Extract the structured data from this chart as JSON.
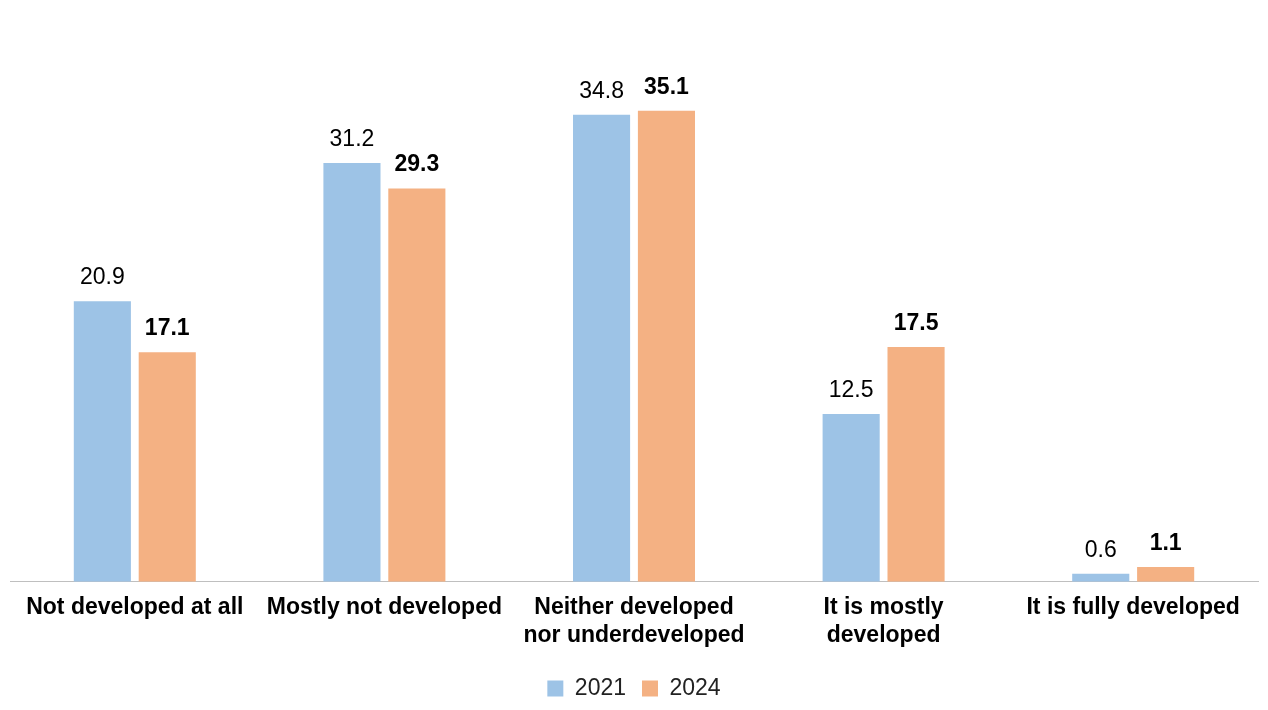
{
  "chart_data": {
    "type": "bar",
    "categories": [
      "Not developed at all",
      "Mostly not developed",
      "Neither developed nor underdeveloped",
      "It is mostly developed",
      "It is fully developed"
    ],
    "series": [
      {
        "name": "2021",
        "color": "#9dc3e6",
        "values": [
          20.9,
          31.2,
          34.8,
          12.5,
          0.6
        ]
      },
      {
        "name": "2024",
        "color": "#f4b183",
        "values": [
          17.1,
          29.3,
          35.1,
          17.5,
          1.1
        ]
      }
    ],
    "data_labels": true,
    "legend": "bottom",
    "grid": false
  }
}
